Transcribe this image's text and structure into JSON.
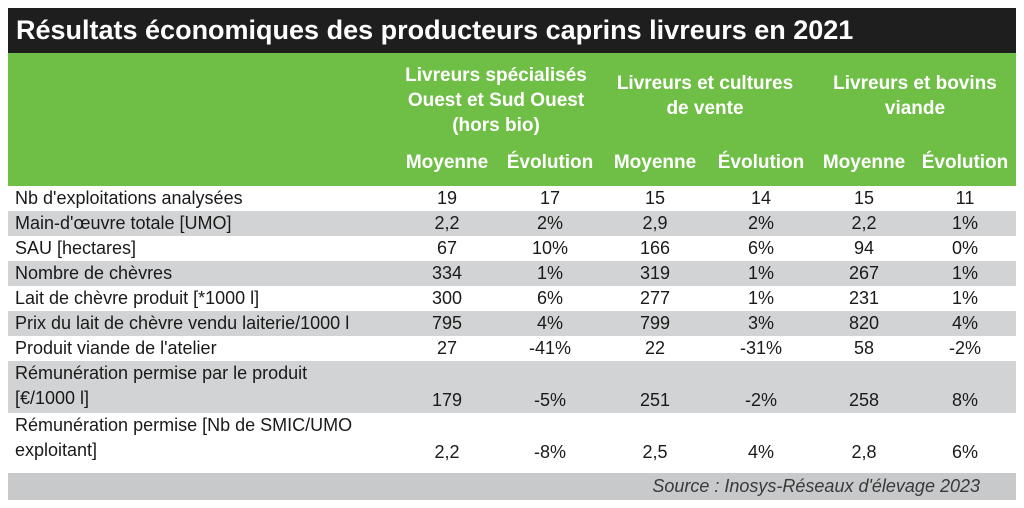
{
  "title": "Résultats économiques des producteurs caprins livreurs en 2021",
  "groups": [
    {
      "line1": "Livreurs spécialisés",
      "line2": "Ouest et Sud Ouest",
      "line3": "(hors bio)"
    },
    {
      "line1": "Livreurs et cultures",
      "line2": "de vente"
    },
    {
      "line1": "Livreurs et bovins",
      "line2": "viande"
    }
  ],
  "subheaders": [
    "Moyenne",
    "Évolution",
    "Moyenne",
    "Évolution",
    "Moyenne",
    "Évolution"
  ],
  "rows": [
    {
      "label": "Nb d'exploitations analysées",
      "values": [
        "19",
        "17",
        "15",
        "14",
        "15",
        "11"
      ]
    },
    {
      "label": "Main-d'œuvre totale [UMO]",
      "values": [
        "2,2",
        "2%",
        "2,9",
        "2%",
        "2,2",
        "1%"
      ]
    },
    {
      "label": "SAU [hectares]",
      "values": [
        "67",
        "10%",
        "166",
        "6%",
        "94",
        "0%"
      ]
    },
    {
      "label": "Nombre de chèvres",
      "values": [
        "334",
        "1%",
        "319",
        "1%",
        "267",
        "1%"
      ]
    },
    {
      "label": "Lait de chèvre produit [*1000 l]",
      "values": [
        "300",
        "6%",
        "277",
        "1%",
        "231",
        "1%"
      ]
    },
    {
      "label": "Prix du lait de chèvre vendu laiterie/1000 l",
      "values": [
        "795",
        "4%",
        "799",
        "3%",
        "820",
        "4%"
      ]
    },
    {
      "label": "Produit viande de l'atelier",
      "values": [
        "27",
        "-41%",
        "22",
        "-31%",
        "58",
        "-2%"
      ]
    },
    {
      "label1": "Rémunération permise par le produit",
      "label2": "[€/1000 l]",
      "values": [
        "179",
        "-5%",
        "251",
        "-2%",
        "258",
        "8%"
      ]
    },
    {
      "label1": "Rémunération permise [Nb de SMIC/UMO",
      "label2": "exploitant]",
      "values": [
        "2,2",
        "-8%",
        "2,5",
        "4%",
        "2,8",
        "6%"
      ]
    }
  ],
  "source": "Source : Inosys-Réseaux d'élevage 2023"
}
